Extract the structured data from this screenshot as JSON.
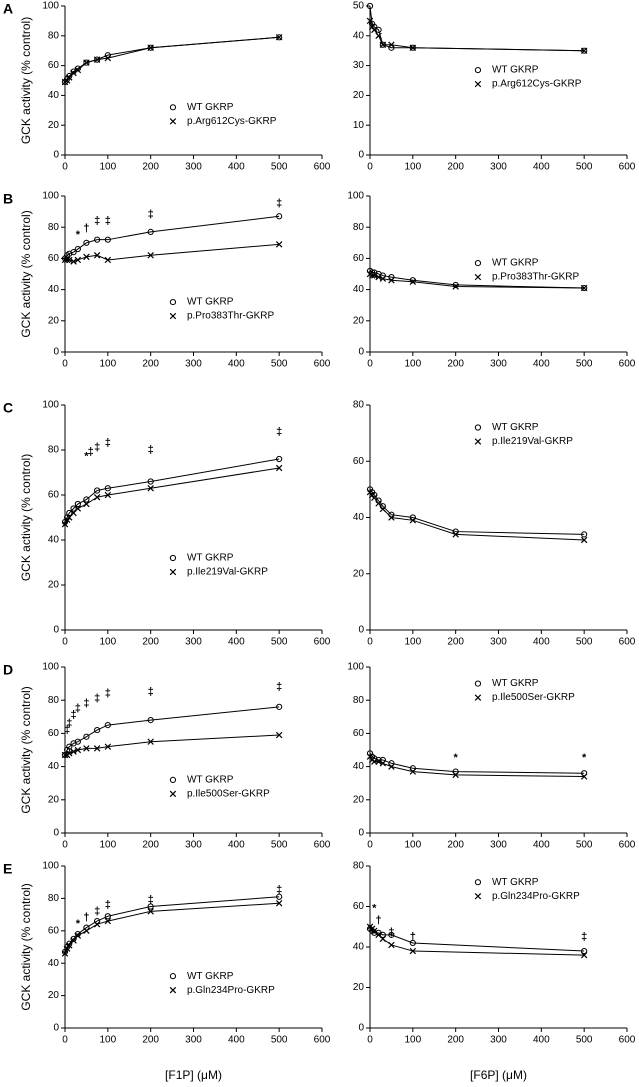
{
  "chart_data": [
    {
      "type": "line",
      "label": "A",
      "ylabel": "GCK activity (% control)",
      "legend": "lower center",
      "x": [
        0,
        5,
        10,
        20,
        30,
        50,
        75,
        100,
        200,
        500
      ],
      "xlim": [
        0,
        600
      ],
      "xticks": [
        0,
        100,
        200,
        300,
        400,
        500,
        600
      ],
      "ylim": [
        0,
        100
      ],
      "yticks": [
        0,
        20,
        40,
        60,
        80,
        100
      ],
      "series": [
        {
          "name": "WT GKRP",
          "marker": "o",
          "color": "#000000",
          "values": [
            49,
            51,
            53,
            56,
            58,
            62,
            64,
            67,
            72,
            79
          ]
        },
        {
          "name": "p.Arg612Cys-GKRP",
          "marker": "x",
          "color": "#000000",
          "values": [
            49,
            50,
            52,
            55,
            57,
            62,
            64,
            65,
            72,
            79
          ]
        }
      ],
      "annotations": []
    },
    {
      "type": "line",
      "legend": "center",
      "x": [
        0,
        5,
        10,
        20,
        30,
        50,
        100,
        500
      ],
      "xlim": [
        0,
        600
      ],
      "xticks": [
        0,
        100,
        200,
        300,
        400,
        500,
        600
      ],
      "ylim": [
        0,
        50
      ],
      "yticks": [
        0,
        10,
        20,
        30,
        40,
        50
      ],
      "series": [
        {
          "name": "WT GKRP",
          "marker": "o",
          "color": "#000000",
          "values": [
            50,
            44,
            43,
            42,
            37,
            36,
            36,
            35
          ]
        },
        {
          "name": "p.Arg612Cys-GKRP",
          "marker": "x",
          "color": "#000000",
          "values": [
            45,
            43,
            42,
            40,
            37,
            37,
            36,
            35
          ]
        }
      ],
      "annotations": []
    },
    {
      "type": "line",
      "label": "B",
      "ylabel": "GCK activity (% control)",
      "legend": "lower center",
      "x": [
        0,
        5,
        10,
        20,
        30,
        50,
        75,
        100,
        200,
        500
      ],
      "xlim": [
        0,
        600
      ],
      "xticks": [
        0,
        100,
        200,
        300,
        400,
        500,
        600
      ],
      "ylim": [
        0,
        100
      ],
      "yticks": [
        0,
        20,
        40,
        60,
        80,
        100
      ],
      "series": [
        {
          "name": "WT GKRP",
          "marker": "o",
          "color": "#000000",
          "values": [
            60,
            62,
            63,
            64,
            66,
            70,
            72,
            72,
            77,
            87
          ]
        },
        {
          "name": "p.Pro383Thr-GKRP",
          "marker": "x",
          "color": "#000000",
          "values": [
            59,
            59,
            59,
            58,
            59,
            61,
            62,
            59,
            62,
            69
          ]
        }
      ],
      "annotations": [
        {
          "x": 30,
          "y": 75,
          "text": "*"
        },
        {
          "x": 50,
          "y": 79,
          "text": "†"
        },
        {
          "x": 75,
          "y": 84,
          "text": "‡"
        },
        {
          "x": 100,
          "y": 84,
          "text": "‡"
        },
        {
          "x": 200,
          "y": 88,
          "text": "‡"
        },
        {
          "x": 500,
          "y": 95,
          "text": "‡"
        }
      ]
    },
    {
      "type": "line",
      "legend": "center",
      "x": [
        0,
        5,
        10,
        20,
        30,
        50,
        100,
        200,
        500
      ],
      "xlim": [
        0,
        600
      ],
      "xticks": [
        0,
        100,
        200,
        300,
        400,
        500,
        600
      ],
      "ylim": [
        0,
        100
      ],
      "yticks": [
        0,
        20,
        40,
        60,
        80,
        100
      ],
      "series": [
        {
          "name": "WT GKRP",
          "marker": "o",
          "color": "#000000",
          "values": [
            52,
            51,
            51,
            50,
            49,
            48,
            46,
            43,
            41
          ]
        },
        {
          "name": "p.Pro383Thr-GKRP",
          "marker": "x",
          "color": "#000000",
          "values": [
            50,
            49,
            49,
            48,
            47,
            46,
            45,
            42,
            41
          ]
        }
      ],
      "annotations": []
    },
    {
      "type": "line",
      "label": "C",
      "ylabel": "GCK activity (% control)",
      "legend": "lower center",
      "x": [
        0,
        5,
        10,
        20,
        30,
        50,
        75,
        100,
        200,
        500
      ],
      "xlim": [
        0,
        600
      ],
      "xticks": [
        0,
        100,
        200,
        300,
        400,
        500,
        600
      ],
      "ylim": [
        0,
        100
      ],
      "yticks": [
        0,
        20,
        40,
        60,
        80,
        100
      ],
      "series": [
        {
          "name": "WT GKRP",
          "marker": "o",
          "color": "#000000",
          "values": [
            48,
            50,
            52,
            54,
            56,
            58,
            62,
            63,
            66,
            76
          ]
        },
        {
          "name": "p.Ile219Val-GKRP",
          "marker": "x",
          "color": "#000000",
          "values": [
            47,
            49,
            50,
            52,
            54,
            56,
            59,
            60,
            63,
            72
          ]
        }
      ],
      "annotations": [
        {
          "x": 50,
          "y": 77,
          "text": "*"
        },
        {
          "x": 60,
          "y": 79,
          "text": "‡"
        },
        {
          "x": 75,
          "y": 81,
          "text": "‡"
        },
        {
          "x": 100,
          "y": 83,
          "text": "‡"
        },
        {
          "x": 200,
          "y": 80,
          "text": "‡"
        },
        {
          "x": 500,
          "y": 88,
          "text": "‡"
        }
      ]
    },
    {
      "type": "line",
      "legend": "upper center",
      "x": [
        0,
        5,
        10,
        20,
        30,
        50,
        100,
        200,
        500
      ],
      "xlim": [
        0,
        600
      ],
      "xticks": [
        0,
        100,
        200,
        300,
        400,
        500,
        600
      ],
      "ylim": [
        0,
        80
      ],
      "yticks": [
        0,
        20,
        40,
        60,
        80
      ],
      "series": [
        {
          "name": "WT GKRP",
          "marker": "o",
          "color": "#000000",
          "values": [
            50,
            49,
            48,
            46,
            44,
            41,
            40,
            35,
            34
          ]
        },
        {
          "name": "p.Ile219Val-GKRP",
          "marker": "x",
          "color": "#000000",
          "values": [
            49,
            48,
            47,
            45,
            43,
            40,
            39,
            34,
            32
          ]
        }
      ],
      "annotations": []
    },
    {
      "type": "line",
      "label": "D",
      "ylabel": "GCK activity (% control)",
      "legend": "lower center",
      "x": [
        0,
        5,
        10,
        20,
        30,
        50,
        75,
        100,
        200,
        500
      ],
      "xlim": [
        0,
        600
      ],
      "xticks": [
        0,
        100,
        200,
        300,
        400,
        500,
        600
      ],
      "ylim": [
        0,
        100
      ],
      "yticks": [
        0,
        20,
        40,
        60,
        80,
        100
      ],
      "series": [
        {
          "name": "WT GKRP",
          "marker": "o",
          "color": "#000000",
          "values": [
            47,
            50,
            52,
            54,
            55,
            58,
            62,
            65,
            68,
            76
          ]
        },
        {
          "name": "p.Ile500Ser-GKRP",
          "marker": "x",
          "color": "#000000",
          "values": [
            47,
            47,
            48,
            49,
            50,
            51,
            51,
            52,
            55,
            59
          ]
        }
      ],
      "annotations": [
        {
          "x": 5,
          "y": 62,
          "text": "‡"
        },
        {
          "x": 10,
          "y": 66,
          "text": "‡"
        },
        {
          "x": 20,
          "y": 71,
          "text": "‡"
        },
        {
          "x": 30,
          "y": 75,
          "text": "‡"
        },
        {
          "x": 50,
          "y": 78,
          "text": "‡"
        },
        {
          "x": 75,
          "y": 81,
          "text": "‡"
        },
        {
          "x": 100,
          "y": 84,
          "text": "‡"
        },
        {
          "x": 200,
          "y": 85,
          "text": "‡"
        },
        {
          "x": 500,
          "y": 88,
          "text": "‡"
        }
      ]
    },
    {
      "type": "line",
      "legend": "upper center",
      "x": [
        0,
        5,
        10,
        20,
        30,
        50,
        100,
        200,
        500
      ],
      "xlim": [
        0,
        600
      ],
      "xticks": [
        0,
        100,
        200,
        300,
        400,
        500,
        600
      ],
      "ylim": [
        0,
        100
      ],
      "yticks": [
        0,
        20,
        40,
        60,
        80,
        100
      ],
      "series": [
        {
          "name": "WT GKRP",
          "marker": "o",
          "color": "#000000",
          "values": [
            48,
            46,
            45,
            44,
            44,
            42,
            39,
            37,
            36
          ]
        },
        {
          "name": "p.Ile500Ser-GKRP",
          "marker": "x",
          "color": "#000000",
          "values": [
            46,
            44,
            43,
            43,
            42,
            40,
            37,
            35,
            34
          ]
        }
      ],
      "annotations": [
        {
          "x": 200,
          "y": 45,
          "text": "*"
        },
        {
          "x": 500,
          "y": 45,
          "text": "*"
        }
      ]
    },
    {
      "type": "line",
      "label": "E",
      "ylabel": "GCK activity (% control)",
      "xlabel": "[F1P] (μM)",
      "legend": "lower center",
      "x": [
        0,
        5,
        10,
        20,
        30,
        50,
        75,
        100,
        200,
        500
      ],
      "xlim": [
        0,
        600
      ],
      "xticks": [
        0,
        100,
        200,
        300,
        400,
        500,
        600
      ],
      "ylim": [
        0,
        100
      ],
      "yticks": [
        0,
        20,
        40,
        60,
        80,
        100
      ],
      "series": [
        {
          "name": "WT GKRP",
          "marker": "o",
          "color": "#000000",
          "values": [
            47,
            50,
            52,
            55,
            58,
            62,
            66,
            69,
            75,
            81
          ]
        },
        {
          "name": "p.Gln234Pro-GKRP",
          "marker": "x",
          "color": "#000000",
          "values": [
            46,
            49,
            51,
            54,
            57,
            60,
            64,
            66,
            72,
            77
          ]
        }
      ],
      "annotations": [
        {
          "x": 30,
          "y": 64,
          "text": "*"
        },
        {
          "x": 50,
          "y": 68,
          "text": "†"
        },
        {
          "x": 75,
          "y": 72,
          "text": "‡"
        },
        {
          "x": 100,
          "y": 76,
          "text": "‡"
        },
        {
          "x": 200,
          "y": 79,
          "text": "‡"
        },
        {
          "x": 500,
          "y": 85,
          "text": "‡"
        }
      ]
    },
    {
      "type": "line",
      "xlabel": "[F6P] (μM)",
      "legend": "upper center",
      "x": [
        0,
        5,
        10,
        20,
        30,
        50,
        100,
        500
      ],
      "xlim": [
        0,
        600
      ],
      "xticks": [
        0,
        100,
        200,
        300,
        400,
        500,
        600
      ],
      "ylim": [
        0,
        80
      ],
      "yticks": [
        0,
        20,
        40,
        60,
        80
      ],
      "series": [
        {
          "name": "WT GKRP",
          "marker": "o",
          "color": "#000000",
          "values": [
            49,
            48,
            47,
            47,
            46,
            46,
            42,
            38
          ]
        },
        {
          "name": "p.Gln234Pro-GKRP",
          "marker": "x",
          "color": "#000000",
          "values": [
            50,
            49,
            48,
            46,
            44,
            41,
            38,
            36
          ]
        }
      ],
      "annotations": [
        {
          "x": 10,
          "y": 59,
          "text": "*"
        },
        {
          "x": 20,
          "y": 53,
          "text": "†"
        },
        {
          "x": 50,
          "y": 47,
          "text": "‡"
        },
        {
          "x": 100,
          "y": 45,
          "text": "†"
        },
        {
          "x": 500,
          "y": 45,
          "text": "‡"
        }
      ]
    }
  ]
}
